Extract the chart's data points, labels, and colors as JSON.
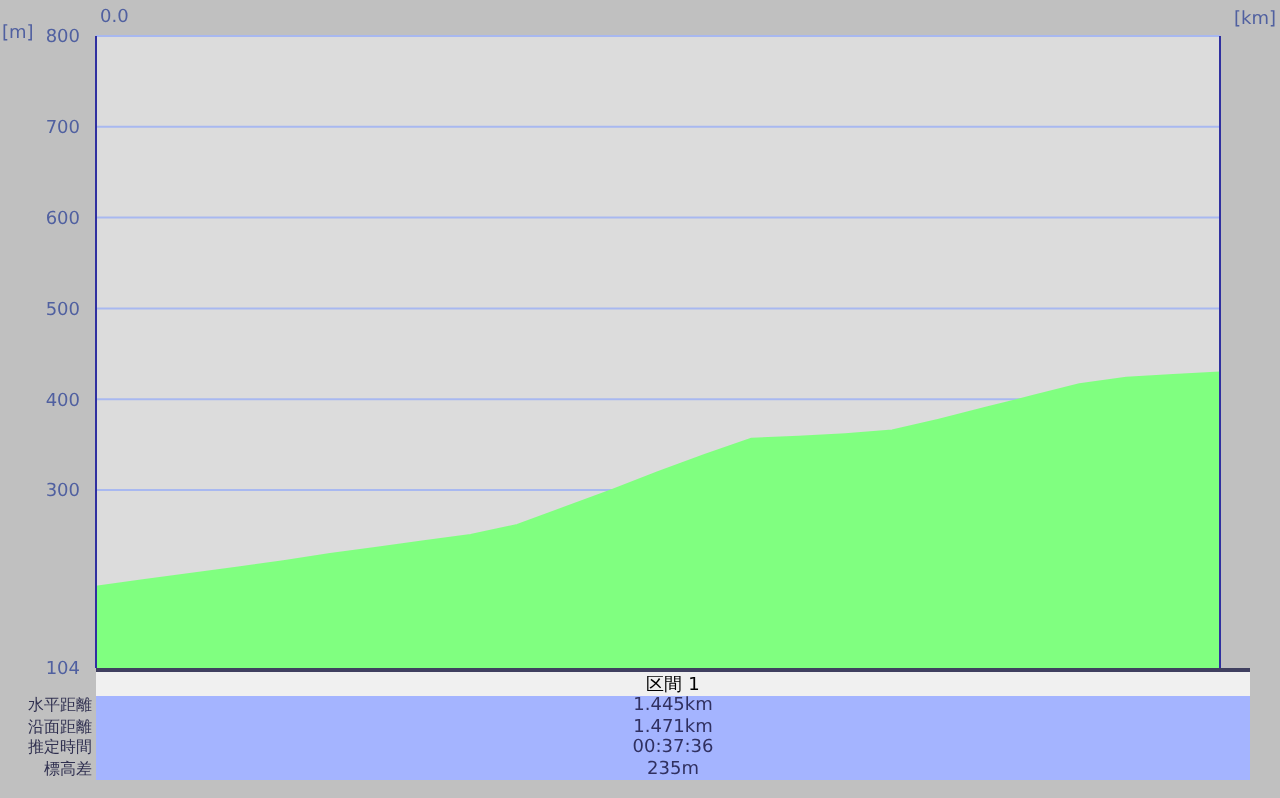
{
  "chart_data": {
    "type": "area",
    "xlabel": "[km]",
    "ylabel": "[m]",
    "categories": [
      null,
      null,
      null,
      null,
      null,
      null,
      null,
      null,
      null,
      null,
      null,
      null,
      null,
      null,
      null,
      null,
      null,
      null,
      null,
      null,
      null,
      null,
      null,
      null,
      null
    ],
    "series": [
      {
        "color": "#80ff80",
        "values": [
          193,
          200,
          207,
          214,
          221,
          229,
          236,
          243,
          250,
          261,
          280,
          299,
          319,
          338,
          356,
          358,
          361,
          365,
          377,
          390,
          403,
          416,
          423,
          426,
          429
        ]
      }
    ],
    "ylim": [
      104,
      800
    ],
    "yticks": [
      104,
      300,
      400,
      500,
      600,
      700,
      800
    ],
    "grid": "y",
    "annotations": [
      "0.0",
      "区間 1",
      "水平距離",
      "1.445km",
      "沿面距離",
      "1.471km",
      "推定時間",
      "00:37:36",
      "標高差",
      "235m"
    ]
  }
}
